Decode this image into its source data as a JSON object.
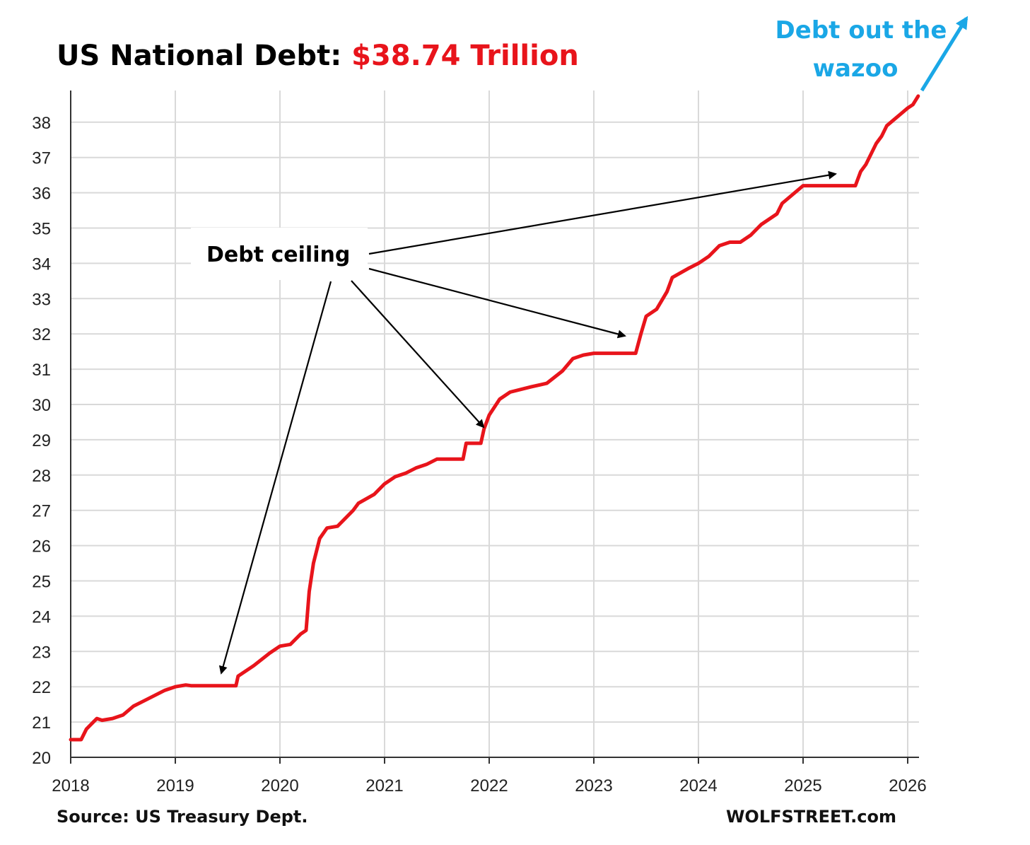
{
  "title": {
    "main": "US National Debt: ",
    "value": "$38.74 Trillion"
  },
  "annotations": {
    "debt_ceiling": "Debt ceiling",
    "wazoo_line1": "Debt out the",
    "wazoo_line2": "wazoo"
  },
  "footer": {
    "source": "Source: US Treasury Dept.",
    "brand": "WOLFSTREET.com"
  },
  "colors": {
    "line": "#e8141b",
    "grid": "#d9d9d9",
    "axis": "#333333",
    "accent_blue": "#1aa7e6",
    "title_value": "#e8141b"
  },
  "chart_data": {
    "type": "line",
    "title": "US National Debt: $38.74 Trillion",
    "xlabel": "",
    "ylabel": "",
    "xlim": [
      2018,
      2026.15
    ],
    "ylim": [
      20,
      38.9
    ],
    "x_ticks": [
      2018,
      2019,
      2020,
      2021,
      2022,
      2023,
      2024,
      2025,
      2026
    ],
    "y_ticks": [
      20,
      21,
      22,
      23,
      24,
      25,
      26,
      27,
      28,
      29,
      30,
      31,
      32,
      33,
      34,
      35,
      36,
      37,
      38
    ],
    "grid": true,
    "legend": "none",
    "series": [
      {
        "x": [
          2018.0,
          2018.1,
          2018.15,
          2018.25,
          2018.3,
          2018.4,
          2018.5,
          2018.6,
          2018.7,
          2018.8,
          2018.9,
          2019.0,
          2019.1,
          2019.15,
          2019.4,
          2019.58,
          2019.6,
          2019.75,
          2019.9,
          2020.0,
          2020.1,
          2020.2,
          2020.25,
          2020.28,
          2020.32,
          2020.38,
          2020.45,
          2020.55,
          2020.6,
          2020.7,
          2020.75,
          2020.9,
          2021.0,
          2021.1,
          2021.2,
          2021.3,
          2021.4,
          2021.5,
          2021.55,
          2021.75,
          2021.78,
          2021.92,
          2021.95,
          2022.0,
          2022.1,
          2022.2,
          2022.4,
          2022.55,
          2022.7,
          2022.8,
          2022.9,
          2023.0,
          2023.4,
          2023.45,
          2023.5,
          2023.6,
          2023.7,
          2023.75,
          2023.9,
          2024.0,
          2024.1,
          2024.2,
          2024.3,
          2024.4,
          2024.5,
          2024.6,
          2024.65,
          2024.75,
          2024.8,
          2024.9,
          2025.0,
          2025.5,
          2025.55,
          2025.6,
          2025.65,
          2025.7,
          2025.75,
          2025.8,
          2025.9,
          2026.0,
          2026.05,
          2026.1
        ],
        "y": [
          20.5,
          20.5,
          20.8,
          21.1,
          21.05,
          21.1,
          21.2,
          21.45,
          21.6,
          21.75,
          21.9,
          22.0,
          22.05,
          22.03,
          22.03,
          22.03,
          22.3,
          22.6,
          22.95,
          23.15,
          23.2,
          23.5,
          23.6,
          24.7,
          25.5,
          26.2,
          26.5,
          26.55,
          26.7,
          27.0,
          27.2,
          27.45,
          27.75,
          27.95,
          28.05,
          28.2,
          28.3,
          28.45,
          28.45,
          28.45,
          28.9,
          28.9,
          29.3,
          29.7,
          30.15,
          30.35,
          30.5,
          30.6,
          30.95,
          31.3,
          31.4,
          31.45,
          31.45,
          32.0,
          32.5,
          32.7,
          33.2,
          33.6,
          33.85,
          34.0,
          34.2,
          34.5,
          34.6,
          34.6,
          34.8,
          35.1,
          35.2,
          35.4,
          35.7,
          35.95,
          36.2,
          36.2,
          36.6,
          36.8,
          37.1,
          37.4,
          37.6,
          37.9,
          38.15,
          38.4,
          38.5,
          38.74
        ]
      }
    ]
  }
}
